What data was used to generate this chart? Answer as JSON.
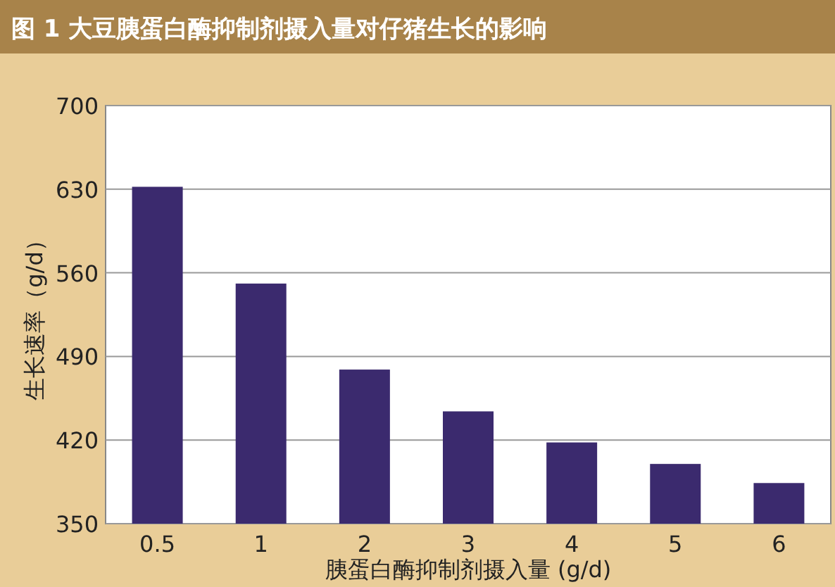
{
  "chart_data": {
    "type": "bar",
    "title": "图 1 大豆胰蛋白酶抑制剂摄入量对仔猪生长的影响",
    "xlabel": "胰蛋白酶抑制剂摄入量 (g/d)",
    "ylabel": "生长速率（g/d）",
    "categories": [
      "0.5",
      "1",
      "2",
      "3",
      "4",
      "5",
      "6"
    ],
    "values": [
      632,
      551,
      479,
      444,
      418,
      400,
      384
    ],
    "color": "#3b2a6e",
    "ylim": [
      350,
      700
    ],
    "yticks": [
      350,
      420,
      490,
      560,
      630,
      700
    ],
    "grid": "y"
  }
}
